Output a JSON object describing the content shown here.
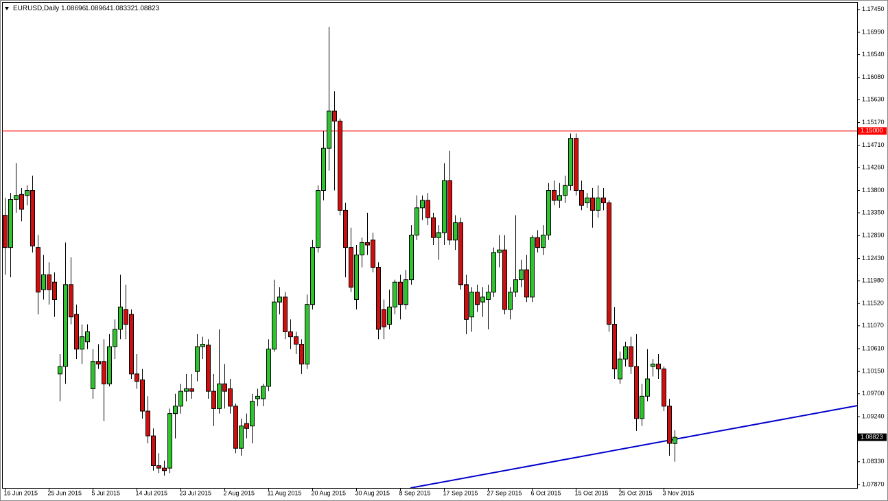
{
  "chart_data": {
    "type": "candlestick",
    "title": "EURUSD,Daily",
    "categories": [
      "16 Jun 2015",
      null,
      null,
      null,
      null,
      null,
      null,
      null,
      "25 Jun 2015",
      null,
      null,
      null,
      null,
      null,
      null,
      null,
      "5 Jul 2015",
      null,
      null,
      null,
      null,
      null,
      null,
      null,
      "14 Jul 2015",
      null,
      null,
      null,
      null,
      null,
      null,
      null,
      "23 Jul 2015",
      null,
      null,
      null,
      null,
      null,
      null,
      null,
      "2 Aug 2015",
      null,
      null,
      null,
      null,
      null,
      null,
      null,
      "11 Aug 2015",
      null,
      null,
      null,
      null,
      null,
      null,
      null,
      "20 Aug 2015",
      null,
      null,
      null,
      null,
      null,
      null,
      null,
      "30 Aug 2015",
      null,
      null,
      null,
      null,
      null,
      null,
      null,
      "8 Sep 2015",
      null,
      null,
      null,
      null,
      null,
      null,
      null,
      "17 Sep 2015",
      null,
      null,
      null,
      null,
      null,
      null,
      null,
      "27 Sep 2015",
      null,
      null,
      null,
      null,
      null,
      null,
      null,
      "6 Oct 2015",
      null,
      null,
      null,
      null,
      null,
      null,
      null,
      "15 Oct 2015",
      null,
      null,
      null,
      null,
      null,
      null,
      null,
      "25 Oct 2015",
      null,
      null,
      null,
      null,
      null,
      null,
      null,
      "3 Nov 2015",
      null,
      null
    ],
    "ohlc": [
      [
        1.133,
        1.1365,
        1.121,
        1.1265
      ],
      [
        1.1265,
        1.1375,
        1.1205,
        1.1362
      ],
      [
        1.1362,
        1.1435,
        1.1335,
        1.137
      ],
      [
        1.1372,
        1.1385,
        1.1318,
        1.1342
      ],
      [
        1.137,
        1.139,
        1.135,
        1.138
      ],
      [
        1.138,
        1.141,
        1.1255,
        1.1268
      ],
      [
        1.1265,
        1.129,
        1.113,
        1.1175
      ],
      [
        1.118,
        1.125,
        1.116,
        1.121
      ],
      [
        1.121,
        1.1235,
        1.115,
        1.118
      ],
      [
        1.1195,
        1.1215,
        1.1125,
        1.116
      ],
      [
        1.101,
        1.105,
        1.0955,
        1.1025
      ],
      [
        1.1025,
        1.1275,
        1.099,
        1.119
      ],
      [
        1.119,
        1.1245,
        1.111,
        1.1125
      ],
      [
        1.113,
        1.115,
        1.104,
        1.106
      ],
      [
        1.106,
        1.111,
        1.103,
        1.1085
      ],
      [
        1.1075,
        1.111,
        1.106,
        1.1095
      ],
      [
        1.098,
        1.106,
        1.096,
        1.1035
      ],
      [
        1.1035,
        1.107,
        1.102,
        1.103
      ],
      [
        1.1035,
        1.108,
        1.0915,
        1.099
      ],
      [
        1.099,
        1.109,
        1.0985,
        1.1065
      ],
      [
        1.1065,
        1.112,
        1.104,
        1.11
      ],
      [
        1.11,
        1.121,
        1.108,
        1.1145
      ],
      [
        1.114,
        1.119,
        1.108,
        1.111
      ],
      [
        1.113,
        1.114,
        1.1,
        1.101
      ],
      [
        1.101,
        1.105,
        1.098,
        1.0995
      ],
      [
        1.0998,
        1.102,
        1.092,
        1.0935
      ],
      [
        1.0935,
        1.0965,
        1.087,
        1.0885
      ],
      [
        1.0885,
        1.09,
        1.0815,
        1.0825
      ],
      [
        1.0825,
        1.085,
        1.081,
        1.082
      ],
      [
        1.082,
        1.0835,
        1.0805,
        1.0815
      ],
      [
        1.082,
        1.094,
        1.081,
        1.093
      ],
      [
        1.093,
        1.097,
        1.088,
        1.0945
      ],
      [
        1.0945,
        1.099,
        1.093,
        1.0975
      ],
      [
        1.0975,
        1.101,
        1.0955,
        1.098
      ],
      [
        1.098,
        1.101,
        1.096,
        1.0975
      ],
      [
        1.1015,
        1.109,
        1.0995,
        1.1065
      ],
      [
        1.1065,
        1.1085,
        1.104,
        1.107
      ],
      [
        1.1068,
        1.108,
        1.096,
        1.0975
      ],
      [
        1.0975,
        1.101,
        1.0905,
        1.094
      ],
      [
        1.094,
        1.11,
        1.093,
        1.099
      ],
      [
        1.099,
        1.103,
        1.094,
        1.0975
      ],
      [
        1.098,
        1.1,
        1.093,
        1.0945
      ],
      [
        1.0945,
        1.095,
        1.085,
        1.086
      ],
      [
        1.086,
        1.092,
        1.0845,
        1.0905
      ],
      [
        1.091,
        1.093,
        1.088,
        1.09
      ],
      [
        1.0905,
        1.097,
        1.087,
        1.0955
      ],
      [
        1.096,
        1.098,
        1.0945,
        1.0965
      ],
      [
        1.096,
        1.099,
        1.0945,
        1.0985
      ],
      [
        1.0985,
        1.108,
        1.0975,
        1.106
      ],
      [
        1.106,
        1.12,
        1.1055,
        1.1155
      ],
      [
        1.1155,
        1.1185,
        1.113,
        1.1165
      ],
      [
        1.1165,
        1.1175,
        1.108,
        1.1095
      ],
      [
        1.1095,
        1.112,
        1.106,
        1.1085
      ],
      [
        1.1085,
        1.1095,
        1.105,
        1.107
      ],
      [
        1.107,
        1.108,
        1.101,
        1.103
      ],
      [
        1.103,
        1.117,
        1.102,
        1.115
      ],
      [
        1.115,
        1.128,
        1.114,
        1.1265
      ],
      [
        1.1265,
        1.139,
        1.1255,
        1.138
      ],
      [
        1.138,
        1.15,
        1.136,
        1.1465
      ],
      [
        1.1465,
        1.171,
        1.142,
        1.154
      ],
      [
        1.154,
        1.158,
        1.138,
        1.152
      ],
      [
        1.152,
        1.1525,
        1.133,
        1.134
      ],
      [
        1.134,
        1.1355,
        1.1205,
        1.1265
      ],
      [
        1.1265,
        1.1305,
        1.1175,
        1.1185
      ],
      [
        1.116,
        1.127,
        1.114,
        1.125
      ],
      [
        1.125,
        1.1285,
        1.1225,
        1.1275
      ],
      [
        1.1275,
        1.1335,
        1.125,
        1.127
      ],
      [
        1.128,
        1.1295,
        1.1215,
        1.1225
      ],
      [
        1.1225,
        1.1235,
        1.108,
        1.11
      ],
      [
        1.114,
        1.116,
        1.108,
        1.1105
      ],
      [
        1.111,
        1.118,
        1.11,
        1.1145
      ],
      [
        1.1145,
        1.12,
        1.113,
        1.1195
      ],
      [
        1.1195,
        1.121,
        1.112,
        1.115
      ],
      [
        1.115,
        1.122,
        1.114,
        1.12
      ],
      [
        1.12,
        1.131,
        1.119,
        1.129
      ],
      [
        1.129,
        1.137,
        1.128,
        1.1345
      ],
      [
        1.1345,
        1.137,
        1.132,
        1.136
      ],
      [
        1.136,
        1.1375,
        1.131,
        1.1325
      ],
      [
        1.1325,
        1.1335,
        1.127,
        1.1285
      ],
      [
        1.1285,
        1.131,
        1.124,
        1.1295
      ],
      [
        1.1295,
        1.1435,
        1.127,
        1.14
      ],
      [
        1.14,
        1.146,
        1.127,
        1.128
      ],
      [
        1.128,
        1.133,
        1.126,
        1.1315
      ],
      [
        1.1315,
        1.1325,
        1.118,
        1.119
      ],
      [
        1.119,
        1.121,
        1.109,
        1.112
      ],
      [
        1.1125,
        1.1185,
        1.1095,
        1.1175
      ],
      [
        1.1175,
        1.119,
        1.1135,
        1.115
      ],
      [
        1.1155,
        1.1185,
        1.1125,
        1.1165
      ],
      [
        1.116,
        1.119,
        1.11,
        1.1175
      ],
      [
        1.1175,
        1.1265,
        1.1165,
        1.1255
      ],
      [
        1.1255,
        1.129,
        1.1225,
        1.126
      ],
      [
        1.126,
        1.129,
        1.113,
        1.114
      ],
      [
        1.114,
        1.1185,
        1.112,
        1.1175
      ],
      [
        1.1175,
        1.133,
        1.1165,
        1.12
      ],
      [
        1.12,
        1.124,
        1.1185,
        1.122
      ],
      [
        1.122,
        1.125,
        1.1155,
        1.1165
      ],
      [
        1.1165,
        1.129,
        1.1155,
        1.1285
      ],
      [
        1.1285,
        1.13,
        1.1255,
        1.1265
      ],
      [
        1.1265,
        1.131,
        1.125,
        1.129
      ],
      [
        1.129,
        1.1395,
        1.128,
        1.138
      ],
      [
        1.138,
        1.14,
        1.135,
        1.136
      ],
      [
        1.136,
        1.1395,
        1.1345,
        1.137
      ],
      [
        1.137,
        1.141,
        1.1355,
        1.139
      ],
      [
        1.139,
        1.1495,
        1.138,
        1.1485
      ],
      [
        1.1485,
        1.1495,
        1.137,
        1.138
      ],
      [
        1.138,
        1.14,
        1.134,
        1.135
      ],
      [
        1.1355,
        1.1375,
        1.1345,
        1.1365
      ],
      [
        1.1365,
        1.1385,
        1.1305,
        1.134
      ],
      [
        1.134,
        1.139,
        1.1325,
        1.1365
      ],
      [
        1.1365,
        1.1385,
        1.134,
        1.1355
      ],
      [
        1.1355,
        1.136,
        1.1095,
        1.111
      ],
      [
        1.111,
        1.1145,
        1.1,
        1.102
      ],
      [
        1.1,
        1.1055,
        1.099,
        1.104
      ],
      [
        1.104,
        1.1075,
        1.1025,
        1.1065
      ],
      [
        1.1065,
        1.1085,
        1.101,
        1.1025
      ],
      [
        1.1025,
        1.109,
        1.0895,
        1.092
      ],
      [
        1.092,
        1.099,
        1.0905,
        1.0965
      ],
      [
        1.0965,
        1.106,
        1.0955,
        1.1
      ],
      [
        1.1025,
        1.104,
        1.1005,
        1.103
      ],
      [
        1.103,
        1.105,
        1.1,
        1.102
      ],
      [
        1.102,
        1.1025,
        1.0935,
        1.0945
      ],
      [
        1.0945,
        1.096,
        1.0845,
        1.087
      ],
      [
        1.08696,
        1.08964,
        1.08332,
        1.08823
      ]
    ],
    "bull_color": "#2fc42f",
    "bear_color": "#cc1010",
    "xlim": [
      -0.5,
      155.25
    ],
    "ylim": [
      1.078,
      1.176
    ],
    "yticks": [
      {
        "value": 1.1745,
        "label": "1.17450"
      },
      {
        "value": 1.1699,
        "label": "1.16990"
      },
      {
        "value": 1.1654,
        "label": "1.16540"
      },
      {
        "value": 1.1608,
        "label": "1.16080"
      },
      {
        "value": 1.1563,
        "label": "1.15630"
      },
      {
        "value": 1.1517,
        "label": "1.15170"
      },
      {
        "value": 1.1471,
        "label": "1.14710"
      },
      {
        "value": 1.1426,
        "label": "1.14260"
      },
      {
        "value": 1.138,
        "label": "1.13800"
      },
      {
        "value": 1.1335,
        "label": "1.13350"
      },
      {
        "value": 1.1289,
        "label": "1.12890"
      },
      {
        "value": 1.1243,
        "label": "1.12430"
      },
      {
        "value": 1.1198,
        "label": "1.11980"
      },
      {
        "value": 1.1152,
        "label": "1.11520"
      },
      {
        "value": 1.1107,
        "label": "1.11070"
      },
      {
        "value": 1.1061,
        "label": "1.10610"
      },
      {
        "value": 1.1015,
        "label": "1.10150"
      },
      {
        "value": 1.097,
        "label": "1.09700"
      },
      {
        "value": 1.0924,
        "label": "1.09240"
      },
      {
        "value": 1.0833,
        "label": "1.08330"
      },
      {
        "value": 1.0787,
        "label": "1.07870"
      }
    ],
    "hline": {
      "value": 1.15,
      "label": "1.15000",
      "color": "#ff0000"
    },
    "trendline": {
      "x": [
        73.9,
        155.25
      ],
      "y": [
        1.078,
        1.0946
      ],
      "color": "#0000cc"
    }
  }
}
